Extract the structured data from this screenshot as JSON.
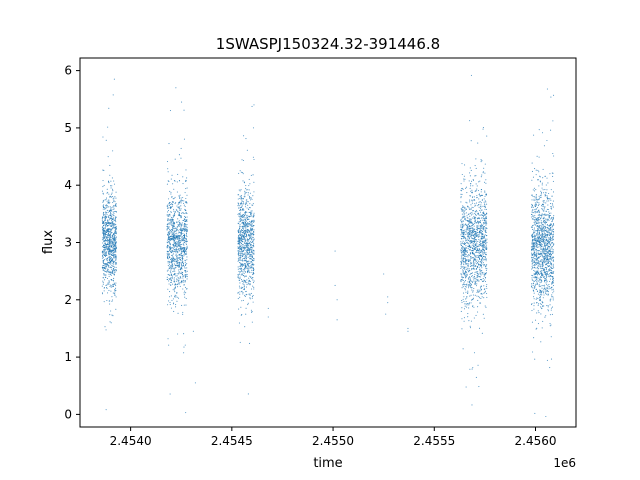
{
  "chart_data": {
    "type": "scatter",
    "title": "1SWASPJ150324.32-391446.8",
    "xlabel": "time",
    "ylabel": "flux",
    "x_offset_label": "1e6",
    "xlim": [
      2.45375,
      2.4562
    ],
    "ylim": [
      -0.22,
      6.22
    ],
    "x_ticks": [
      2.454,
      2.4545,
      2.455,
      2.4555,
      2.456
    ],
    "x_tick_labels": [
      "2.4540",
      "2.4545",
      "2.4550",
      "2.4555",
      "2.4560"
    ],
    "y_ticks": [
      0,
      1,
      2,
      3,
      4,
      5,
      6
    ],
    "y_tick_labels": [
      "0",
      "1",
      "2",
      "3",
      "4",
      "5",
      "6"
    ],
    "grid": false,
    "marker_color": "#1f77b4",
    "series": [
      {
        "clusters": [
          {
            "x_range": [
              2.45386,
              2.45393
            ],
            "y_center": 3.0,
            "y_spread": 0.42,
            "count": 900
          },
          {
            "x_range": [
              2.45418,
              2.45428
            ],
            "y_center": 2.95,
            "y_spread": 0.45,
            "count": 1000
          },
          {
            "x_range": [
              2.45453,
              2.45461
            ],
            "y_center": 3.0,
            "y_spread": 0.45,
            "count": 900
          },
          {
            "x_range": [
              2.45563,
              2.45576
            ],
            "y_center": 2.95,
            "y_spread": 0.5,
            "count": 1300
          },
          {
            "x_range": [
              2.45598,
              2.45609
            ],
            "y_center": 2.9,
            "y_spread": 0.5,
            "count": 1300
          }
        ],
        "sparse_points": [
          [
            2.45468,
            1.85
          ],
          [
            2.45468,
            1.7
          ],
          [
            2.45501,
            2.85
          ],
          [
            2.45501,
            2.25
          ],
          [
            2.45502,
            2.0
          ],
          [
            2.45502,
            1.65
          ],
          [
            2.45525,
            2.45
          ],
          [
            2.45527,
            1.95
          ],
          [
            2.45526,
            1.75
          ],
          [
            2.45527,
            2.05
          ],
          [
            2.45537,
            1.5
          ],
          [
            2.45537,
            1.45
          ],
          [
            2.45431,
            1.45
          ],
          [
            2.45432,
            0.55
          ]
        ]
      }
    ]
  }
}
